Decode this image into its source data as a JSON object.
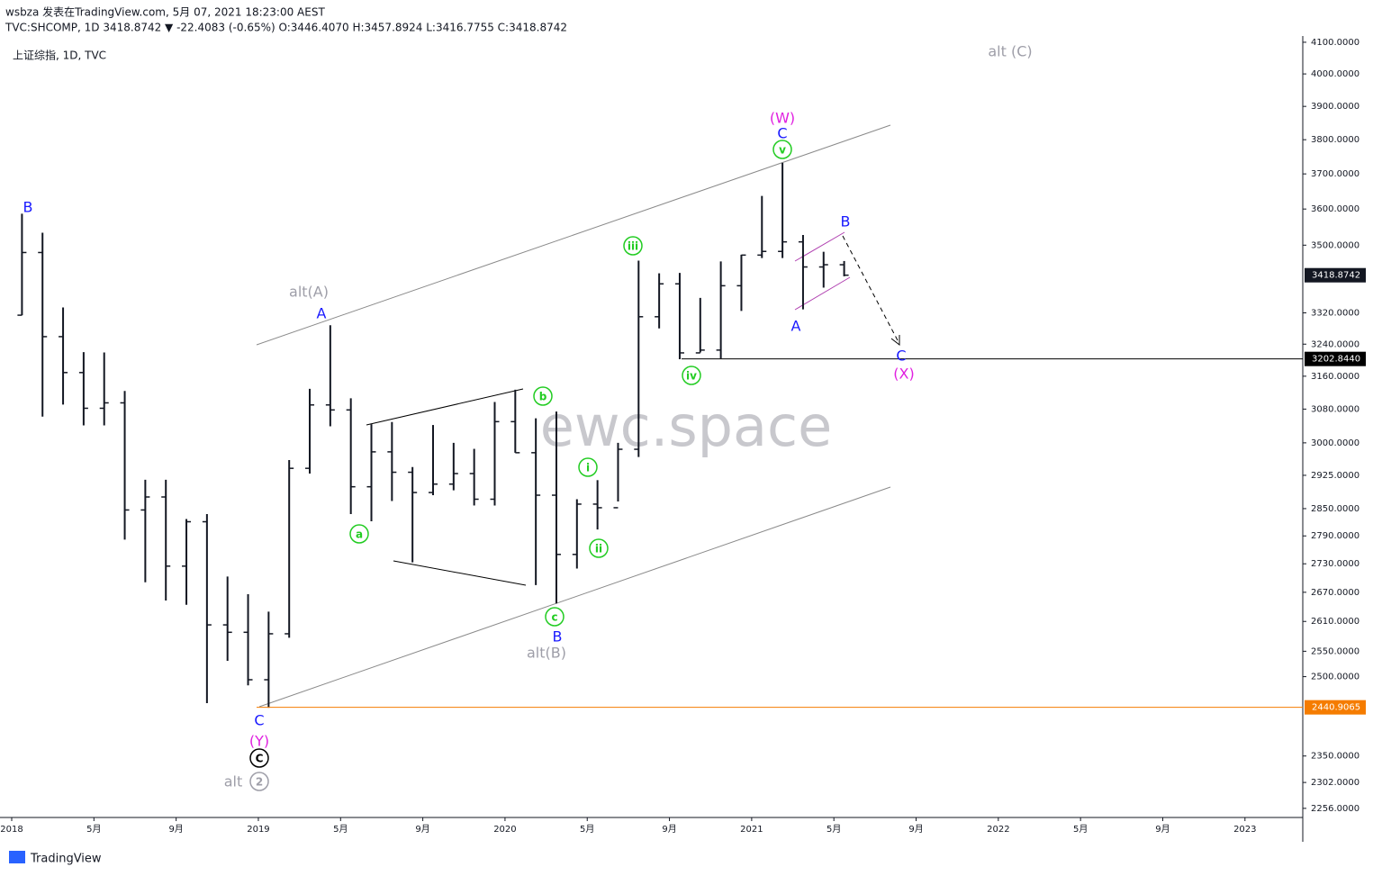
{
  "header": {
    "author_line": "wsbza 发表在TradingView.com, 5月 07, 2021 18:23:00 AEST",
    "quote_line": "TVC:SHCOMP, 1D 3418.8742 ▼ -22.4083 (-0.65%) O:3446.4070 H:3457.8924 L:3416.7755 C:3418.8742",
    "legend": "上证综指, 1D, TVC"
  },
  "footer": "TradingView",
  "chart_data": {
    "type": "ohlc",
    "watermark": "ewc.space",
    "log_scale": true,
    "color": "#131722",
    "x": [
      "2018-01",
      "2018-02",
      "2018-03",
      "2018-04",
      "2018-05",
      "2018-06",
      "2018-07",
      "2018-08",
      "2018-09",
      "2018-10",
      "2018-11",
      "2018-12",
      "2019-01",
      "2019-02",
      "2019-03",
      "2019-04",
      "2019-05",
      "2019-06",
      "2019-07",
      "2019-08",
      "2019-09",
      "2019-10",
      "2019-11",
      "2019-12",
      "2020-01",
      "2020-02",
      "2020-03",
      "2020-04",
      "2020-05",
      "2020-06",
      "2020-07",
      "2020-08",
      "2020-09",
      "2020-10",
      "2020-11",
      "2020-12",
      "2021-01",
      "2021-02",
      "2021-03",
      "2021-04",
      "2021-05"
    ],
    "open": [
      3314,
      3480,
      3259,
      3169,
      3082,
      3095,
      2847,
      2876,
      2725,
      2821,
      2603,
      2588,
      2494,
      2585,
      2941,
      3090,
      3078,
      2899,
      2979,
      2932,
      2886,
      2905,
      2929,
      2871,
      3050,
      2977,
      2880,
      2750,
      2860,
      2852,
      2985,
      3310,
      3396,
      3218,
      3225,
      3391,
      3473,
      3483,
      3509,
      3441,
      3447
    ],
    "high": [
      3587,
      3534,
      3334,
      3220,
      3219,
      3124,
      2915,
      2915,
      2827,
      2838,
      2703,
      2666,
      2630,
      2960,
      3129,
      3288,
      3106,
      3044,
      3049,
      2944,
      3042,
      3000,
      2986,
      3097,
      3127,
      3058,
      3074,
      2871,
      2914,
      3000,
      3458,
      3424,
      3425,
      3359,
      3456,
      3474,
      3637,
      3732,
      3528,
      3482,
      3457
    ],
    "low": [
      3314,
      3062,
      3091,
      3041,
      3041,
      2782,
      2691,
      2653,
      2644,
      2449,
      2531,
      2483,
      2440,
      2577,
      2929,
      3039,
      2838,
      2822,
      2867,
      2733,
      2880,
      2891,
      2857,
      2857,
      2977,
      2685,
      2647,
      2720,
      2804,
      2866,
      2967,
      3280,
      3202,
      3219,
      3204,
      3325,
      3465,
      3465,
      3329,
      3386,
      3416
    ],
    "close": [
      3480,
      3259,
      3169,
      3082,
      3095,
      2847,
      2876,
      2725,
      2821,
      2603,
      2588,
      2494,
      2585,
      2941,
      3090,
      3078,
      2899,
      2979,
      2932,
      2886,
      2905,
      2929,
      2871,
      3050,
      2977,
      2880,
      2750,
      2860,
      2852,
      2985,
      3310,
      3396,
      3218,
      3225,
      3391,
      3473,
      3483,
      3509,
      3441,
      3447,
      3419
    ],
    "xlim": [
      "2018-01",
      "2023-03"
    ],
    "xticks": [
      {
        "value": "2018-01",
        "label": "2018"
      },
      {
        "value": "2018-05",
        "label": "5月"
      },
      {
        "value": "2018-09",
        "label": "9月"
      },
      {
        "value": "2019-01",
        "label": "2019"
      },
      {
        "value": "2019-05",
        "label": "5月"
      },
      {
        "value": "2019-09",
        "label": "9月"
      },
      {
        "value": "2020-01",
        "label": "2020"
      },
      {
        "value": "2020-05",
        "label": "5月"
      },
      {
        "value": "2020-09",
        "label": "9月"
      },
      {
        "value": "2021-01",
        "label": "2021"
      },
      {
        "value": "2021-05",
        "label": "5月"
      },
      {
        "value": "2021-09",
        "label": "9月"
      },
      {
        "value": "2022-01",
        "label": "2022"
      },
      {
        "value": "2022-05",
        "label": "5月"
      },
      {
        "value": "2022-09",
        "label": "9月"
      },
      {
        "value": "2023-01",
        "label": "2023"
      }
    ],
    "ylim": [
      2240,
      4120
    ],
    "yticks": [
      {
        "value": 4100,
        "label": "4100.0000"
      },
      {
        "value": 4000,
        "label": "4000.0000"
      },
      {
        "value": 3900,
        "label": "3900.0000"
      },
      {
        "value": 3800,
        "label": "3800.0000"
      },
      {
        "value": 3700,
        "label": "3700.0000"
      },
      {
        "value": 3600,
        "label": "3600.0000"
      },
      {
        "value": 3500,
        "label": "3500.0000"
      },
      {
        "value": 3320,
        "label": "3320.0000"
      },
      {
        "value": 3240,
        "label": "3240.0000"
      },
      {
        "value": 3160,
        "label": "3160.0000"
      },
      {
        "value": 3080,
        "label": "3080.0000"
      },
      {
        "value": 3000,
        "label": "3000.0000"
      },
      {
        "value": 2925,
        "label": "2925.0000"
      },
      {
        "value": 2850,
        "label": "2850.0000"
      },
      {
        "value": 2790,
        "label": "2790.0000"
      },
      {
        "value": 2730,
        "label": "2730.0000"
      },
      {
        "value": 2670,
        "label": "2670.0000"
      },
      {
        "value": 2610,
        "label": "2610.0000"
      },
      {
        "value": 2550,
        "label": "2550.0000"
      },
      {
        "value": 2500,
        "label": "2500.0000"
      },
      {
        "value": 2350,
        "label": "2350.0000"
      },
      {
        "value": 2302,
        "label": "2302.0000"
      },
      {
        "value": 2256,
        "label": "2256.0000"
      }
    ],
    "last_price": {
      "value": 3418.8742,
      "label": "3418.8742",
      "color": "#131722"
    },
    "levels": [
      {
        "value": 3202.844,
        "label": "3202.8440",
        "color": "#000000"
      },
      {
        "value": 2440.9065,
        "label": "2440.9065",
        "color": "#f57c00"
      }
    ],
    "annotations": [
      {
        "text": "B",
        "color": "#1a1aff"
      },
      {
        "text": "alt(A)",
        "color": "#9e9ea8"
      },
      {
        "text": "A",
        "color": "#1a1aff"
      },
      {
        "text": "C",
        "color": "#1a1aff"
      },
      {
        "text": "(Y)",
        "color": "#e020e0"
      },
      {
        "text": "C",
        "color": "#000000",
        "circled": true
      },
      {
        "text": "alt",
        "color": "#9e9ea8"
      },
      {
        "text": "2",
        "color": "#9e9ea8",
        "circled": true
      },
      {
        "text": "a",
        "color": "#22cc22",
        "circled": true
      },
      {
        "text": "b",
        "color": "#22cc22",
        "circled": true
      },
      {
        "text": "c",
        "color": "#22cc22",
        "circled": true
      },
      {
        "text": "B",
        "color": "#1a1aff"
      },
      {
        "text": "alt(B)",
        "color": "#9e9ea8"
      },
      {
        "text": "i",
        "color": "#22cc22",
        "circled": true
      },
      {
        "text": "ii",
        "color": "#22cc22",
        "circled": true
      },
      {
        "text": "iii",
        "color": "#22cc22",
        "circled": true
      },
      {
        "text": "iv",
        "color": "#22cc22",
        "circled": true
      },
      {
        "text": "v",
        "color": "#22cc22",
        "circled": true
      },
      {
        "text": "C",
        "color": "#1a1aff"
      },
      {
        "text": "(W)",
        "color": "#e020e0"
      },
      {
        "text": "B",
        "color": "#1a1aff"
      },
      {
        "text": "A",
        "color": "#1a1aff"
      },
      {
        "text": "C",
        "color": "#1a1aff"
      },
      {
        "text": "(X)",
        "color": "#e020e0"
      },
      {
        "text": "alt (C)",
        "color": "#9e9ea8"
      }
    ]
  }
}
